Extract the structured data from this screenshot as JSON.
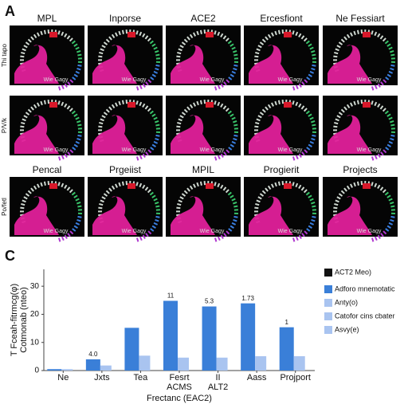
{
  "panel_a": {
    "label": "A",
    "column_titles_top": [
      "MPL",
      "Inporse",
      "ACE2",
      "Ercesfiont",
      "Ne Fessiart"
    ],
    "column_titles_bottom": [
      "Pencal",
      "Prgeiist",
      "MPIL",
      "Progierit",
      "Projects"
    ],
    "row_labels": [
      "Thi tapo",
      "P/V/k",
      "Po/fetl"
    ],
    "image_caption": "Wie Gagy"
  },
  "panel_c_label": "C",
  "chart_data": {
    "type": "bar",
    "categories": [
      "Ne",
      "Jxts",
      "Tea",
      "Fesrt\nACMS",
      "II\nALT2",
      "Aass",
      "Projport"
    ],
    "series": [
      {
        "name": "Adforo mnemotatic",
        "color": "#3a7fd8",
        "values": [
          0.5,
          4.0,
          15.2,
          24.8,
          22.8,
          23.9,
          15.4
        ]
      },
      {
        "name": "Anty(o)",
        "color": "#a9c4f0",
        "values": [
          0.5,
          1.8,
          5.3,
          4.6,
          4.6,
          5.1,
          5.1
        ]
      }
    ],
    "bar_notes": [
      null,
      "4.0",
      null,
      "11",
      "5.3",
      "1.73",
      "1"
    ],
    "other_legend_entries": [
      {
        "label": "ACT2 Meo)",
        "color": "#111111"
      },
      {
        "label": "Catofor cins cbater",
        "color": "#a9c4f0"
      },
      {
        "label": "Asvy(e)",
        "color": "#a9c4f0"
      }
    ],
    "x_label": "Frectanc (EAC2)",
    "y_label": [
      "T Fceah-fitrmcg(φ)",
      "Cotmonab (nteo)"
    ],
    "ylim": [
      0,
      36
    ],
    "yticks": [
      0,
      10,
      20,
      30
    ]
  }
}
